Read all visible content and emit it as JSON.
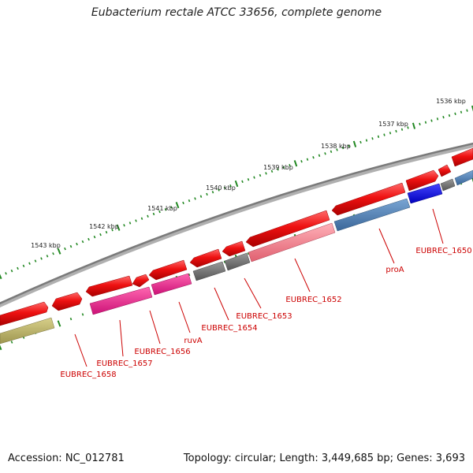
{
  "title": "Eubacterium rectale ATCC 33656, complete genome",
  "footer": {
    "accession": "Accession: NC_012781",
    "summary": "Topology: circular; Length: 3,449,685 bp; Genes: 3,693"
  },
  "scale_labels": [
    "1536 kbp",
    "1537 kbp",
    "1538 kbp",
    "1539 kbp",
    "1540 kbp",
    "1541 kbp",
    "1542 kbp",
    "1543 kbp"
  ],
  "gene_labels": [
    "EUBREC_1650",
    "proA",
    "EUBREC_1652",
    "EUBREC_1653",
    "EUBREC_1654",
    "ruvA",
    "EUBREC_1656",
    "EUBREC_1657",
    "EUBREC_1658"
  ],
  "colors": {
    "forward_gene": "#ee1111",
    "backbone": "#888888",
    "scale_tick": "#228822",
    "gray_feature": "#666666",
    "pink_feature": "#ee6688",
    "magenta_feature": "#ee2288",
    "blue_feature": "#4477aa",
    "bright_blue_feature": "#1111dd",
    "olive_feature": "#bbb366",
    "label_red": "#cc0000"
  }
}
